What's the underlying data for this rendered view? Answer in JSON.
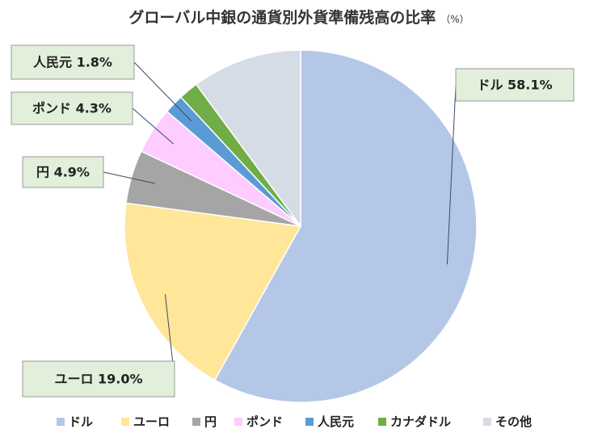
{
  "chart_data": {
    "type": "pie",
    "title": "グローバル中銀の通貨別外貨準備残高の比率",
    "unit": "（%）",
    "categories": [
      "ドル",
      "ユーロ",
      "円",
      "ポンド",
      "人民元",
      "カナダドル",
      "その他"
    ],
    "values": [
      58.1,
      19.0,
      4.9,
      4.3,
      1.8,
      1.8,
      10.1
    ],
    "colors": [
      "#b4c7e7",
      "#ffe699",
      "#a5a5a5",
      "#ffccff",
      "#5b9bd5",
      "#70ad47",
      "#d6dce5"
    ],
    "data_labels": [
      {
        "category": "ドル",
        "text": "ドル 58.1%"
      },
      {
        "category": "ユーロ",
        "text": "ユーロ 19.0%"
      },
      {
        "category": "円",
        "text": "円 4.9%"
      },
      {
        "category": "ポンド",
        "text": "ポンド 4.3%"
      },
      {
        "category": "人民元",
        "text": "人民元 1.8%"
      }
    ],
    "label_box_color": "#e2efda",
    "legend_position": "bottom"
  }
}
